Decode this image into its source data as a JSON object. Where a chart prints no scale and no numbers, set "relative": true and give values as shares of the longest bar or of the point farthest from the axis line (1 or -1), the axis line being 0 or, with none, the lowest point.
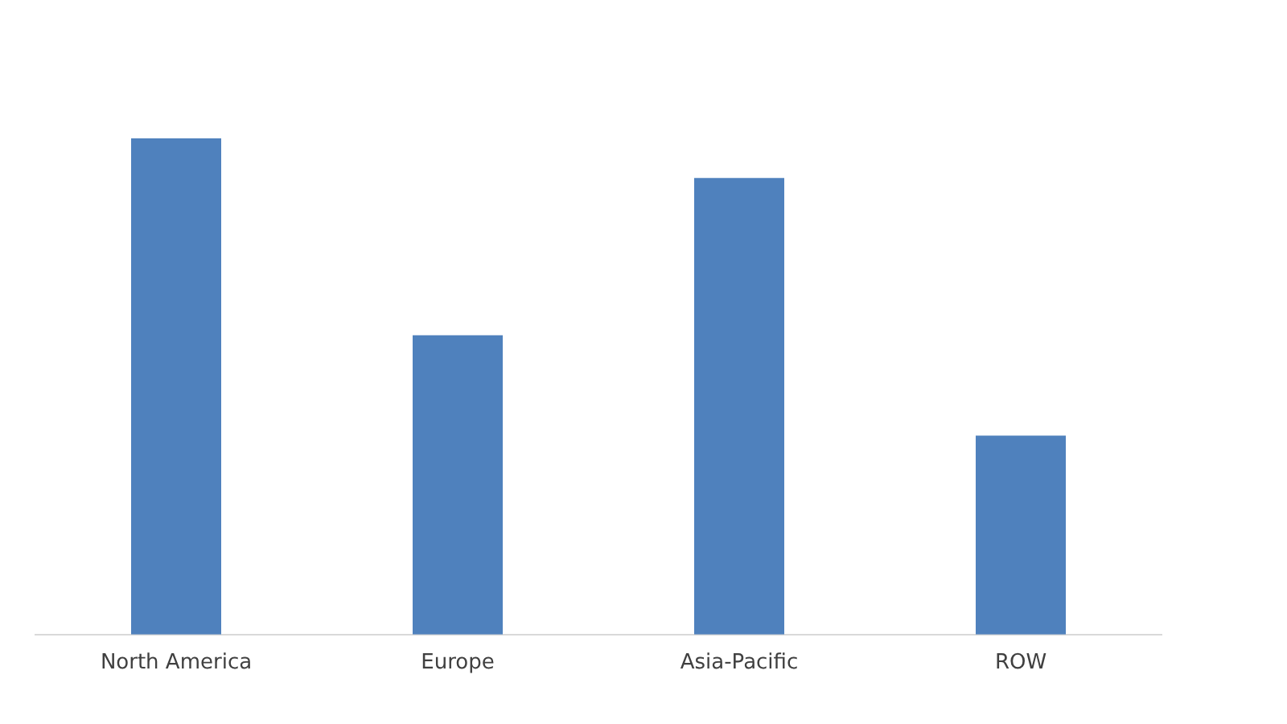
{
  "chart_data": {
    "type": "bar",
    "relative": true,
    "categories": [
      "North America",
      "Europe",
      "Asia-Pacific",
      "ROW"
    ],
    "values": [
      1,
      0.603,
      0.92,
      0.401
    ],
    "color": "#4f81bd",
    "grid": false,
    "legend": false
  }
}
